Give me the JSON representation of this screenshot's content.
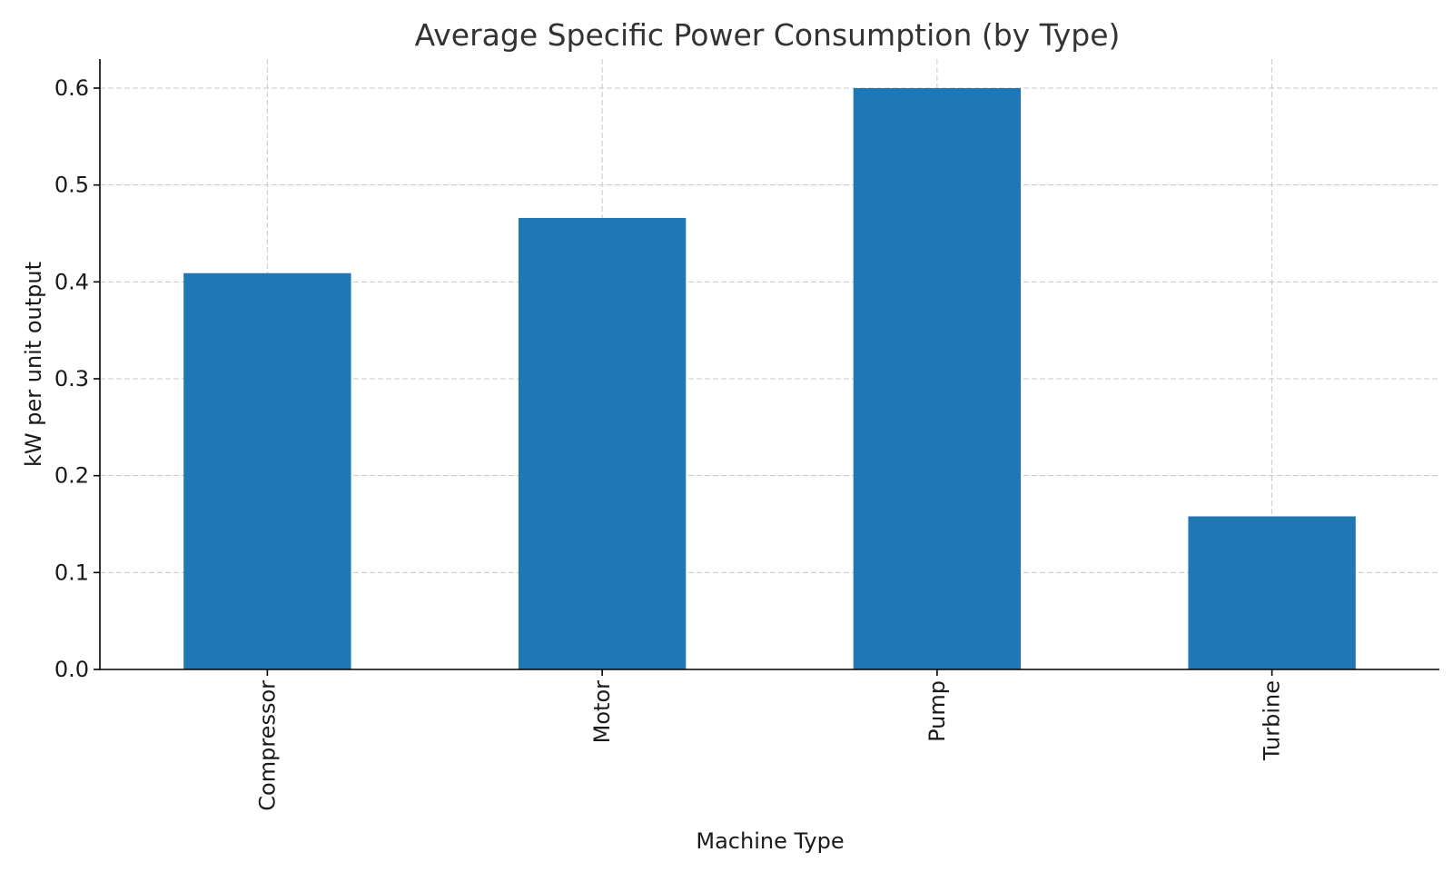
{
  "chart_data": {
    "type": "bar",
    "title": "Average Specific Power Consumption (by Type)",
    "xlabel": "Machine Type",
    "ylabel": "kW per unit output",
    "categories": [
      "Compressor",
      "Motor",
      "Pump",
      "Turbine"
    ],
    "values": [
      0.409,
      0.466,
      0.6,
      0.158
    ],
    "ylim": [
      0,
      0.63
    ],
    "yticks": [
      0.0,
      0.1,
      0.2,
      0.3,
      0.4,
      0.5,
      0.6
    ],
    "ytick_labels": [
      "0.0",
      "0.1",
      "0.2",
      "0.3",
      "0.4",
      "0.5",
      "0.6"
    ],
    "grid": true,
    "legend": null,
    "colors": {
      "bar": "#1f77b4"
    }
  }
}
